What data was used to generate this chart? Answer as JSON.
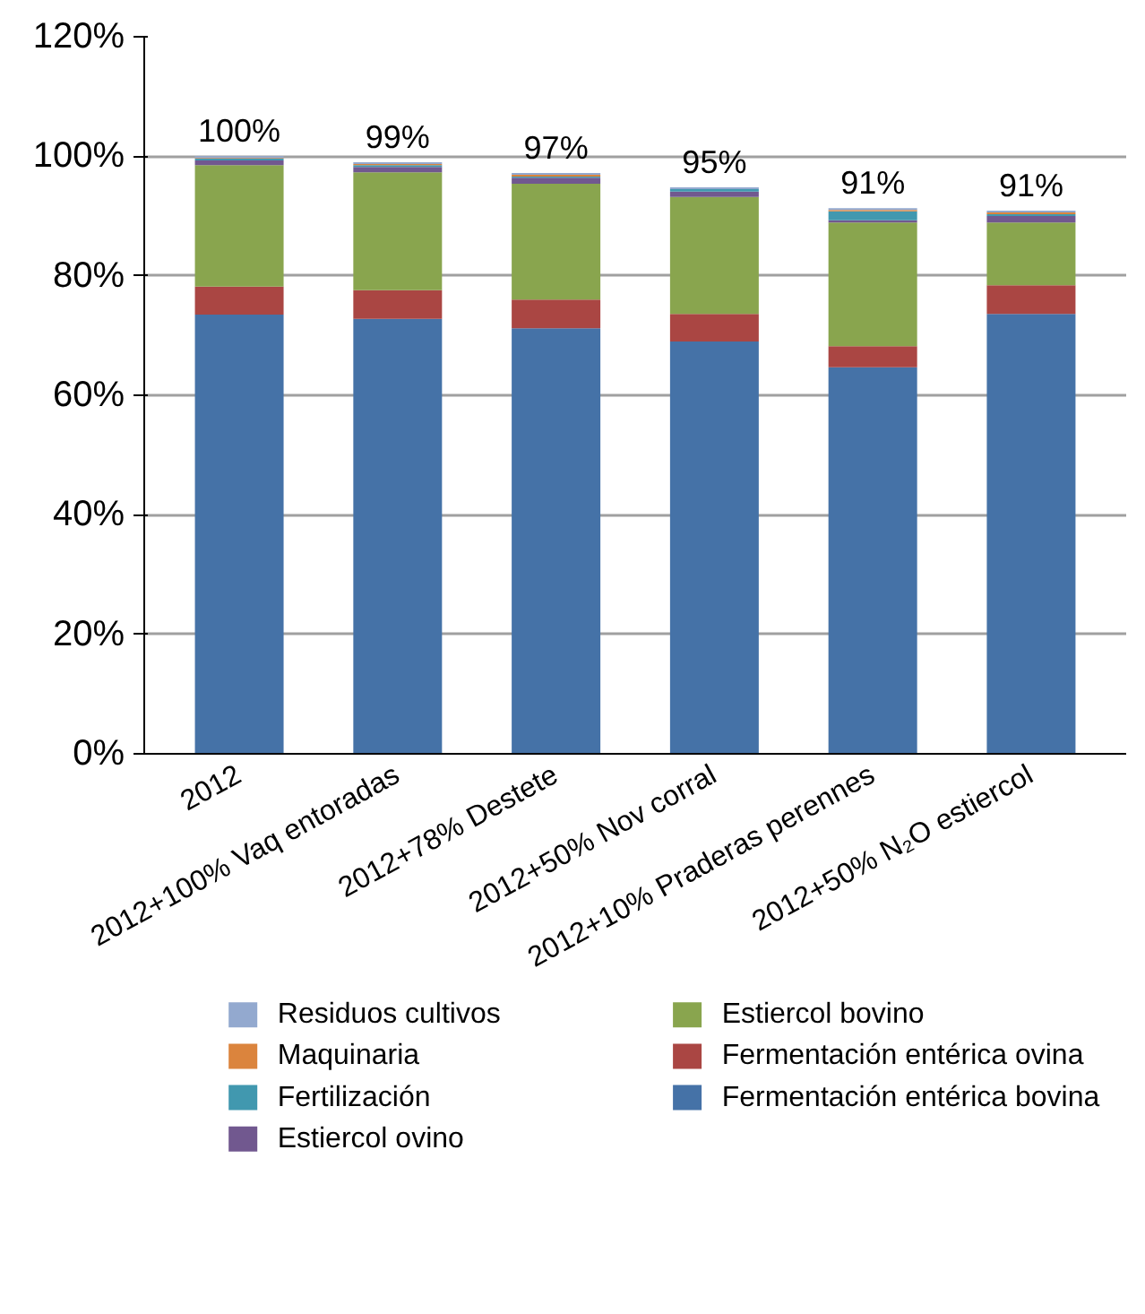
{
  "chart_data": {
    "type": "bar",
    "stacked": true,
    "categories": [
      "2012",
      "2012+100% Vaq entoradas",
      "2012+78% Destete",
      "2012+50% Nov corral",
      "2012+10% Praderas perennes",
      "2012+50% N₂O estiercol"
    ],
    "series": [
      {
        "name": "Fermentación entérica bovina",
        "color": "#4572a7",
        "values": [
          73.5,
          72.8,
          71.2,
          69.0,
          64.7,
          73.6
        ]
      },
      {
        "name": "Fermentación entérica ovina",
        "color": "#aa4643",
        "values": [
          4.7,
          4.8,
          4.8,
          4.6,
          3.5,
          4.8
        ]
      },
      {
        "name": "Estiercol bovino",
        "color": "#89a54e",
        "values": [
          20.3,
          19.7,
          19.4,
          19.6,
          20.7,
          10.5
        ]
      },
      {
        "name": "Estiercol ovino",
        "color": "#71588f",
        "values": [
          0.8,
          0.9,
          1.0,
          0.9,
          0.4,
          1.1
        ]
      },
      {
        "name": "Fertilización",
        "color": "#4198af",
        "values": [
          0.3,
          0.3,
          0.2,
          0.4,
          1.5,
          0.3
        ]
      },
      {
        "name": "Maquinaria",
        "color": "#db843d",
        "values": [
          0.1,
          0.2,
          0.3,
          0.0,
          0.2,
          0.3
        ]
      },
      {
        "name": "Residuos cultivos",
        "color": "#93a9cf",
        "values": [
          0.3,
          0.3,
          0.3,
          0.3,
          0.3,
          0.3
        ]
      }
    ],
    "totals": [
      "100%",
      "99%",
      "97%",
      "95%",
      "91%",
      "91%"
    ],
    "ylim": [
      0,
      120
    ],
    "yticks": [
      {
        "value": 0,
        "label": "0%"
      },
      {
        "value": 20,
        "label": "20%"
      },
      {
        "value": 40,
        "label": "40%"
      },
      {
        "value": 60,
        "label": "60%"
      },
      {
        "value": 80,
        "label": "80%"
      },
      {
        "value": 100,
        "label": "100%"
      },
      {
        "value": 120,
        "label": "120%"
      }
    ],
    "grid": "y",
    "legend": "bottom"
  }
}
